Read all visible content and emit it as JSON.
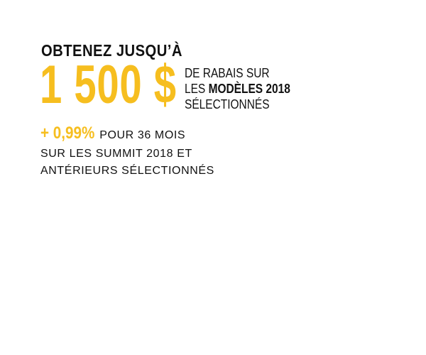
{
  "headline": "OBTENEZ JUSQU’À",
  "amount": "1 500 $",
  "rebate": {
    "line1": "DE RABAIS SUR",
    "line2_prefix": "LES ",
    "line2_strong": "MODÈLES 2018",
    "line3": "SÉLECTIONNÉS"
  },
  "financing": {
    "rate": "+ 0,99%",
    "term": "POUR 36 MOIS",
    "line2": "SUR LES SUMMIT 2018 ET",
    "line3": "ANTÉRIEURS SÉLECTIONNÉS"
  },
  "colors": {
    "accent": "#f6be1f",
    "text": "#111111",
    "background": "#ffffff"
  }
}
